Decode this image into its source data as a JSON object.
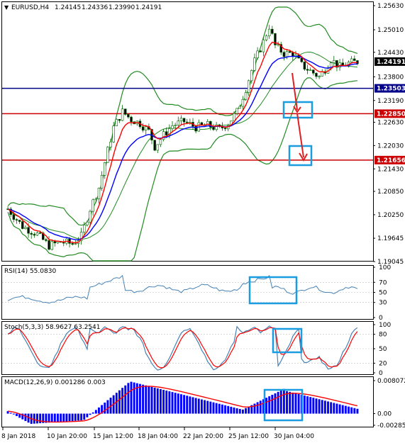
{
  "symbol": "EURUSD,H4",
  "ohlc": [
    "1.24145",
    "1.24336",
    "1.23990",
    "1.24191"
  ],
  "colors": {
    "bg": "#ffffff",
    "candle": "#006400",
    "ma_fast": "#ff0000",
    "ma_slow": "#0000ff",
    "bollinger": "#228B22",
    "hline_blue": "#00008b",
    "hline_red": "#cc0000",
    "annotation": "#1a9de0",
    "arrow": "#e02020",
    "rsi_line": "#4682b4",
    "stoch_main": "#4682b4",
    "stoch_signal": "#ff0000",
    "macd_hist": "#0000ff",
    "macd_signal": "#ff0000",
    "price_tag": "#000000"
  },
  "price_axis": [
    "1.25630",
    "1.25010",
    "1.24430",
    "1.23800",
    "1.23190",
    "1.22630",
    "1.22030",
    "1.21430",
    "1.20850",
    "1.20250",
    "1.19645",
    "1.19045"
  ],
  "current_price_label": "1.24191",
  "level_labels": {
    "blue": "1.23503",
    "red_upper": "1.22850",
    "red_lower": "1.21656"
  },
  "rsi": {
    "label": "RSI(14) 55.0830",
    "axis": [
      "100",
      "70",
      "50",
      "30",
      "0"
    ]
  },
  "stoch": {
    "label": "Stoch(5,3,3) 58.9627 63.2541",
    "axis": [
      "100",
      "80",
      "50",
      "20",
      "0"
    ]
  },
  "macd": {
    "label": "MACD(12,26,9) 0.001286 0.003",
    "axis": [
      "0.008072",
      "0.00",
      "-0.002851"
    ]
  },
  "time_axis": [
    "8 Jan 2018",
    "10 Jan 20:00",
    "15 Jan 12:00",
    "18 Jan 04:00",
    "22 Jan 20:00",
    "25 Jan 12:00",
    "30 Jan 04:00"
  ],
  "chart_data": {
    "type": "line",
    "title": "EURUSD,H4",
    "ylim": [
      1.1905,
      1.2563
    ],
    "x": [
      "8 Jan 2018",
      "10 Jan 20:00",
      "15 Jan 12:00",
      "18 Jan 04:00",
      "22 Jan 20:00",
      "25 Jan 12:00",
      "30 Jan 04:00"
    ],
    "series": [
      {
        "values": [
          1.2005,
          1.196,
          1.227,
          1.225,
          1.226,
          1.247,
          1.2419
        ]
      }
    ],
    "levels": [
      1.23503,
      1.2285,
      1.21656
    ],
    "last_price": 1.24191
  }
}
